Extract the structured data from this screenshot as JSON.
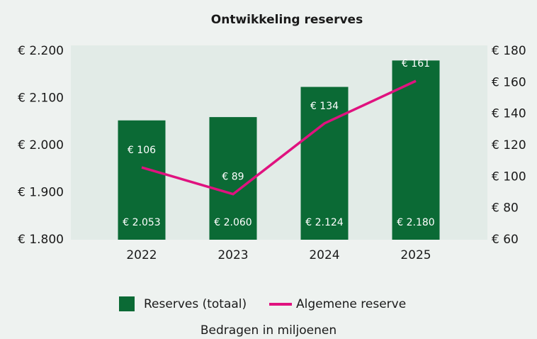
{
  "chart_data": {
    "type": "bar",
    "title": "Ontwikkeling reserves",
    "subtitle": "Bedragen in miljoenen",
    "categories": [
      "2022",
      "2023",
      "2024",
      "2025"
    ],
    "series": [
      {
        "name": "Reserves (totaal)",
        "type": "bar",
        "color": "#0b6a35",
        "values": [
          2053,
          2060,
          2124,
          2180
        ],
        "value_labels": [
          "€ 2.053",
          "€ 2.060",
          "€ 2.124",
          "€ 2.180"
        ]
      },
      {
        "name": "Algemene reserve",
        "type": "line",
        "axis": "y2",
        "color": "#e0127f",
        "values": [
          106,
          89,
          134,
          161
        ],
        "value_labels": [
          "€ 106",
          "€ 89",
          "€ 134",
          "€ 161"
        ]
      }
    ],
    "ylim": [
      1800,
      2200
    ],
    "yticks": [
      {
        "value": 1800,
        "label": "€ 1.800"
      },
      {
        "value": 1900,
        "label": "€ 1.900"
      },
      {
        "value": 2000,
        "label": "€ 2.000"
      },
      {
        "value": 2100,
        "label": "€ 2.100"
      },
      {
        "value": 2200,
        "label": "€ 2.200"
      }
    ],
    "y2lim": [
      60,
      180
    ],
    "y2ticks": [
      {
        "value": 60,
        "label": "€ 60"
      },
      {
        "value": 80,
        "label": "€ 80"
      },
      {
        "value": 100,
        "label": "€ 100"
      },
      {
        "value": 120,
        "label": "€ 120"
      },
      {
        "value": 140,
        "label": "€ 140"
      },
      {
        "value": 160,
        "label": "€ 160"
      },
      {
        "value": 180,
        "label": "€ 180"
      }
    ],
    "legend": "bottom"
  }
}
